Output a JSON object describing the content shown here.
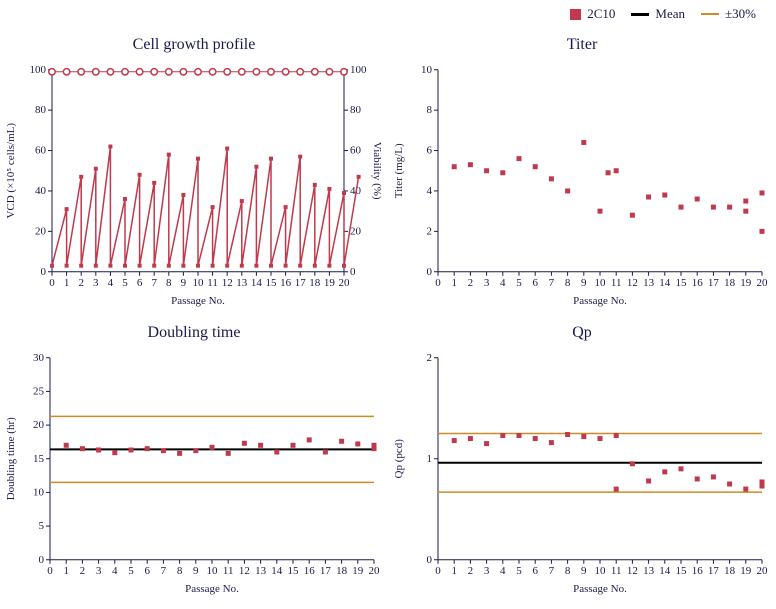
{
  "legend": {
    "series_label": "2C10",
    "series_color": "#c0394c",
    "mean_label": "Mean",
    "mean_color": "#000000",
    "band_label": "±30%",
    "band_color": "#d08a2a"
  },
  "font": {
    "family": "Times New Roman",
    "axis_size_pt": 11,
    "label_size_pt": 12,
    "title_size_pt": 16,
    "text_color": "#1a1a4a"
  },
  "common": {
    "background_color": "#ffffff",
    "axis_color": "#1a1a4a",
    "tick_color": "#1a1a4a",
    "grid": false,
    "x_label": "Passage No.",
    "x_ticks": [
      0,
      1,
      2,
      3,
      4,
      5,
      6,
      7,
      8,
      9,
      10,
      11,
      12,
      13,
      14,
      15,
      16,
      17,
      18,
      19,
      20
    ],
    "xlim": [
      0,
      20
    ]
  },
  "cell_growth": {
    "type": "line+scatter",
    "title": "Cell growth profile",
    "y_left_label": "VCD (×10⁵ cells/mL)",
    "y_right_label": "Viability (%)",
    "y_left_lim": [
      0,
      100
    ],
    "y_left_ticks": [
      0,
      20,
      40,
      60,
      80,
      100
    ],
    "y_right_lim": [
      0,
      100
    ],
    "y_right_ticks": [
      0,
      20,
      40,
      60,
      80,
      100
    ],
    "vcd_line_color": "#c0394c",
    "vcd_line_width": 1.5,
    "vcd_marker": "square-filled",
    "vcd_marker_size": 5,
    "viability_color": "#c0394c",
    "viability_marker": "circle-open",
    "viability_marker_size": 6,
    "viability_line_width": 1,
    "vcd_sawtooth": [
      {
        "p": 0,
        "start": 3,
        "end": 31
      },
      {
        "p": 1,
        "start": 3,
        "end": 47
      },
      {
        "p": 2,
        "start": 3,
        "end": 51
      },
      {
        "p": 3,
        "start": 3,
        "end": 62
      },
      {
        "p": 4,
        "start": 3,
        "end": 36
      },
      {
        "p": 5,
        "start": 3,
        "end": 48
      },
      {
        "p": 6,
        "start": 3,
        "end": 44
      },
      {
        "p": 7,
        "start": 3,
        "end": 58
      },
      {
        "p": 8,
        "start": 3,
        "end": 38
      },
      {
        "p": 9,
        "start": 3,
        "end": 56
      },
      {
        "p": 10,
        "start": 3,
        "end": 32
      },
      {
        "p": 11,
        "start": 3,
        "end": 61
      },
      {
        "p": 12,
        "start": 3,
        "end": 35
      },
      {
        "p": 13,
        "start": 3,
        "end": 52
      },
      {
        "p": 14,
        "start": 3,
        "end": 56
      },
      {
        "p": 15,
        "start": 3,
        "end": 32
      },
      {
        "p": 16,
        "start": 3,
        "end": 57
      },
      {
        "p": 17,
        "start": 3,
        "end": 43
      },
      {
        "p": 18,
        "start": 3,
        "end": 41
      },
      {
        "p": 19,
        "start": 3,
        "end": 39
      },
      {
        "p": 20,
        "start": 3,
        "end": 47
      }
    ],
    "viability": [
      99,
      99,
      99,
      99,
      99,
      99,
      99,
      99,
      99,
      99,
      99,
      99,
      99,
      99,
      99,
      99,
      99,
      99,
      99,
      99,
      99
    ]
  },
  "titer": {
    "type": "scatter",
    "title": "Titer",
    "ylabel": "Titer (mg/L)",
    "ylim": [
      0,
      10
    ],
    "yticks": [
      0,
      2,
      4,
      6,
      8,
      10
    ],
    "marker": "square-filled",
    "marker_size": 5,
    "marker_color": "#c0394c",
    "values": {
      "1": 5.2,
      "2": 5.3,
      "3": 5.0,
      "4": 4.9,
      "5": 5.6,
      "6": 5.2,
      "7": 4.6,
      "8": 4.0,
      "9": 6.4,
      "10": 3.0,
      "11": 5.0,
      "12": 2.8,
      "13": 3.7,
      "14": 3.8,
      "15": 3.2,
      "16": 3.6,
      "17": 3.2,
      "18": 3.2,
      "19": 3.5,
      "20": 3.9
    },
    "extra_points": [
      {
        "x": 19,
        "y": 3.0
      },
      {
        "x": 20,
        "y": 2.0
      },
      {
        "x": 10.5,
        "y": 4.9
      }
    ]
  },
  "doubling_time": {
    "type": "scatter+reflines",
    "title": "Doubling time",
    "ylabel": "Doubling time (hr)",
    "ylim": [
      0,
      30
    ],
    "yticks": [
      0,
      5,
      10,
      15,
      20,
      25,
      30
    ],
    "marker": "square-filled",
    "marker_size": 5,
    "marker_color": "#c0394c",
    "mean_value": 16.4,
    "mean_line_color": "#000000",
    "mean_line_width": 2,
    "band_low": 11.5,
    "band_high": 21.3,
    "band_color": "#d08a2a",
    "band_line_width": 1.5,
    "values": {
      "1": 17.0,
      "2": 16.5,
      "3": 16.3,
      "4": 15.9,
      "5": 16.3,
      "6": 16.5,
      "7": 16.2,
      "8": 15.8,
      "9": 16.2,
      "10": 16.7,
      "11": 15.8,
      "12": 17.3,
      "13": 17.0,
      "14": 16.0,
      "15": 17.0,
      "16": 17.8,
      "17": 16.0,
      "18": 17.6,
      "19": 17.2,
      "20": 16.5
    },
    "extra_points": [
      {
        "x": 20,
        "y": 17.0
      }
    ]
  },
  "qp": {
    "type": "scatter+reflines",
    "title": "Qp",
    "ylabel": "Qp (pcd)",
    "ylim": [
      0,
      2
    ],
    "yticks": [
      0,
      1,
      2
    ],
    "marker": "square-filled",
    "marker_size": 5,
    "marker_color": "#c0394c",
    "mean_value": 0.96,
    "mean_line_color": "#000000",
    "mean_line_width": 2,
    "band_low": 0.67,
    "band_high": 1.25,
    "band_color": "#d08a2a",
    "band_line_width": 1.5,
    "values": {
      "1": 1.18,
      "2": 1.2,
      "3": 1.15,
      "4": 1.23,
      "5": 1.23,
      "6": 1.2,
      "7": 1.16,
      "8": 1.24,
      "9": 1.22,
      "10": 1.2,
      "11": 1.23,
      "12": 0.95,
      "13": 0.78,
      "14": 0.87,
      "15": 0.9,
      "16": 0.8,
      "17": 0.82,
      "18": 0.75,
      "19": 0.7,
      "20": 0.73
    },
    "extra_points": [
      {
        "x": 11,
        "y": 0.7
      },
      {
        "x": 20,
        "y": 0.77
      }
    ]
  }
}
